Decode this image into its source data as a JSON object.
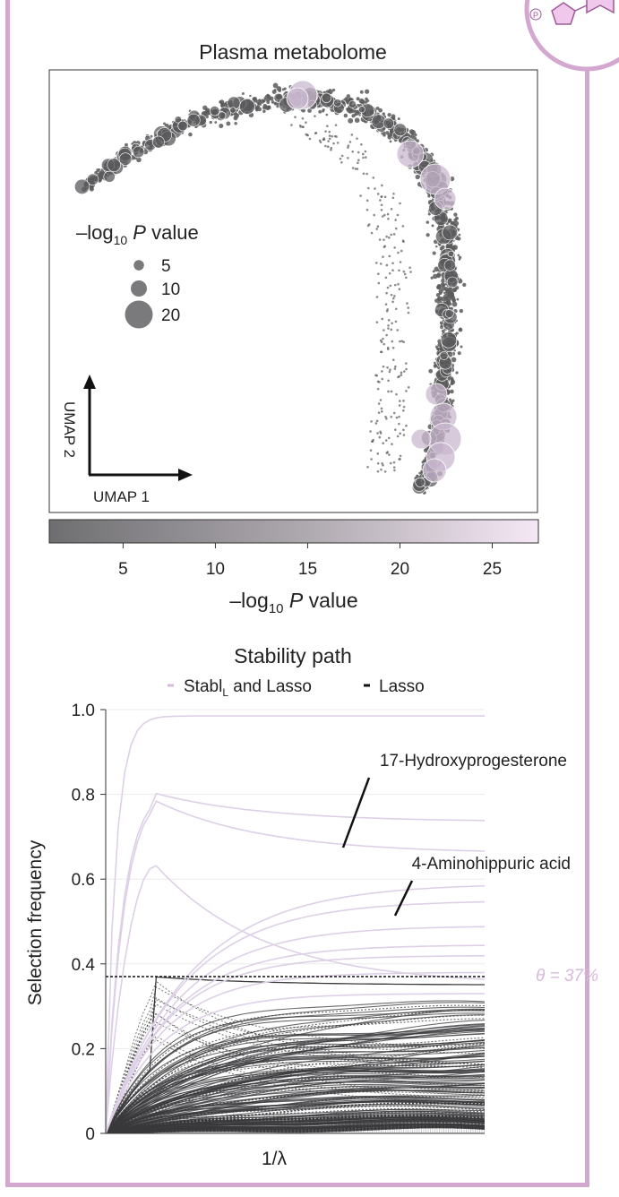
{
  "chart_data": [
    {
      "type": "scatter",
      "title": "Plasma metabolome",
      "xlabel": "UMAP 1",
      "ylabel": "UMAP 2",
      "size_legend": {
        "title_prefix": "–log",
        "title_sub": "10",
        "title_italic": "P",
        "title_suffix": " value",
        "entries": [
          5,
          10,
          20
        ]
      },
      "colorbar": {
        "label_prefix": "–log",
        "label_sub": "10",
        "label_italic": "P",
        "label_suffix": " value",
        "ticks": [
          "5",
          "10",
          "15",
          "20",
          "25"
        ],
        "range": [
          1,
          27.5
        ],
        "color_low": "#6e6e70",
        "color_high": "#f5e8f5"
      },
      "colors": {
        "points": "#5a5a5c",
        "highlight": "#c9b8cf"
      }
    },
    {
      "type": "line",
      "title": "Stability path",
      "xlabel": "1/λ",
      "ylabel": "Selection frequency",
      "ylim": [
        0,
        1.0
      ],
      "yticks": [
        "0",
        "0.2",
        "0.4",
        "0.6",
        "0.8",
        "1.0"
      ],
      "legend": {
        "stabl_prefix": "Stabl",
        "stabl_sub": "L",
        "stabl_suffix": " and Lasso",
        "lasso": "Lasso"
      },
      "threshold": {
        "value": 0.37,
        "label": "θ = 37%"
      },
      "annotations": [
        "17-Hydroxyprogesterone",
        "4-Aminohippuric acid"
      ],
      "highlight_series": [
        {
          "final": 0.985,
          "peak": 0.985
        },
        {
          "final": 0.735,
          "peak": 0.805
        },
        {
          "final": 0.66,
          "peak": 0.79
        },
        {
          "final": 0.35,
          "peak": 0.645
        },
        {
          "final": 0.59,
          "peak": 0.59
        },
        {
          "final": 0.55,
          "peak": 0.55
        },
        {
          "final": 0.49,
          "peak": 0.49
        },
        {
          "final": 0.445,
          "peak": 0.445
        },
        {
          "final": 0.42,
          "peak": 0.42
        },
        {
          "final": 0.38,
          "peak": 0.38
        },
        {
          "final": 0.33,
          "peak": 0.33
        }
      ],
      "colors": {
        "stabl": "#ddd0e6",
        "lasso": "#3a3a3c",
        "threshold": "#111111",
        "theta": "#d8b8dc"
      }
    }
  ]
}
